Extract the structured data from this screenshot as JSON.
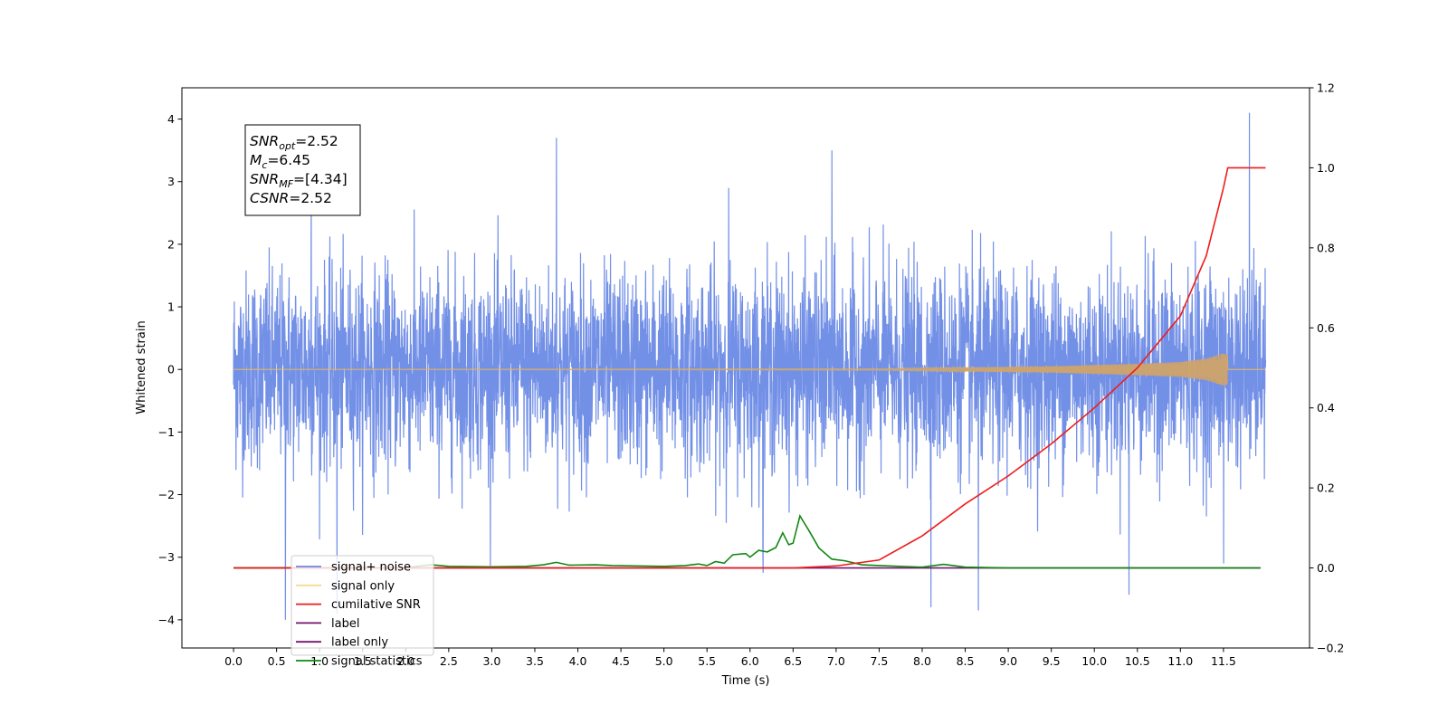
{
  "chart_data": {
    "type": "line",
    "title": "",
    "xlabel": "Time (s)",
    "ylabel": "Whitened strain",
    "y2label": "",
    "xlim": [
      -0.6,
      12.5
    ],
    "ylim": [
      -4.45,
      4.5
    ],
    "y2lim": [
      -0.2,
      1.2
    ],
    "x_ticks": [
      "0.0",
      "0.5",
      "1.0",
      "1.5",
      "2.0",
      "2.5",
      "3.0",
      "3.5",
      "4.0",
      "4.5",
      "5.0",
      "5.5",
      "6.0",
      "6.5",
      "7.0",
      "7.5",
      "8.0",
      "8.5",
      "9.0",
      "9.5",
      "10.0",
      "10.5",
      "11.0",
      "11.5"
    ],
    "y_ticks": [
      "-4",
      "-3",
      "-2",
      "-1",
      "0",
      "1",
      "2",
      "3",
      "4"
    ],
    "y2_ticks": [
      "-0.2",
      "0.0",
      "0.2",
      "0.4",
      "0.6",
      "0.8",
      "1.0",
      "1.2"
    ],
    "grid": false,
    "legend_position": "bottom-left",
    "annotation": {
      "lines": [
        {
          "base": "SNR",
          "sub": "opt",
          "rest": "=2.52"
        },
        {
          "base": "M",
          "sub": "c",
          "rest": "=6.45"
        },
        {
          "base": "SNR",
          "sub": "MF",
          "rest": "=[4.34]"
        },
        {
          "base": "CSNR",
          "sub": "",
          "rest": "=2.52"
        }
      ]
    },
    "series": [
      {
        "name": "signal+ noise",
        "color": "#6b8ae6",
        "axis": "left",
        "kind": "noise",
        "x_range": [
          0.0,
          11.99
        ],
        "envelope": [
          [
            0.0,
            2.2
          ],
          [
            3.7,
            3.7
          ],
          [
            6.9,
            3.5
          ],
          [
            9.0,
            3.0
          ],
          [
            11.8,
            4.1
          ],
          [
            11.99,
            2.6
          ]
        ],
        "spikes": [
          [
            0.6,
            -4.0
          ],
          [
            0.9,
            3.2
          ],
          [
            1.2,
            -3.9
          ],
          [
            3.75,
            3.7
          ],
          [
            5.75,
            2.9
          ],
          [
            6.15,
            -3.25
          ],
          [
            6.95,
            3.5
          ],
          [
            8.1,
            -3.8
          ],
          [
            8.65,
            -3.85
          ],
          [
            10.4,
            -3.6
          ],
          [
            11.5,
            -3.1
          ],
          [
            11.8,
            4.1
          ]
        ]
      },
      {
        "name": "signal only",
        "color": "#f5c04a",
        "axis": "left",
        "kind": "chirp",
        "x": [
          0.0,
          7.5,
          8.5,
          9.5,
          10.0,
          10.5,
          11.0,
          11.3,
          11.5,
          11.99
        ],
        "amplitude": [
          0.0,
          0.01,
          0.03,
          0.05,
          0.07,
          0.09,
          0.12,
          0.17,
          0.26,
          0.0
        ]
      },
      {
        "name": "cumilative SNR",
        "color": "#ee1c1c",
        "axis": "right",
        "x": [
          0.0,
          6.5,
          7.0,
          7.5,
          8.0,
          8.5,
          9.0,
          9.5,
          10.0,
          10.5,
          11.0,
          11.3,
          11.5,
          11.55,
          11.99
        ],
        "y": [
          0.0,
          0.0,
          0.005,
          0.02,
          0.08,
          0.16,
          0.23,
          0.31,
          0.4,
          0.5,
          0.63,
          0.78,
          0.95,
          1.0,
          1.0
        ]
      },
      {
        "name": "label",
        "color": "#74146e",
        "axis": "right",
        "x": [
          0.0,
          11.93
        ],
        "y": [
          0.0,
          0.0
        ]
      },
      {
        "name": "label only",
        "color": "#74146e",
        "axis": "right",
        "x": [],
        "y": []
      },
      {
        "name": "signal statistics",
        "color": "#118811",
        "axis": "right",
        "x": [
          0.0,
          2.0,
          2.3,
          2.5,
          3.0,
          3.4,
          3.6,
          3.75,
          3.9,
          4.2,
          4.4,
          5.0,
          5.25,
          5.4,
          5.5,
          5.6,
          5.7,
          5.8,
          5.95,
          6.0,
          6.1,
          6.2,
          6.3,
          6.38,
          6.45,
          6.5,
          6.58,
          6.68,
          6.8,
          6.95,
          7.1,
          7.3,
          7.5,
          8.0,
          8.25,
          8.5,
          9.0,
          11.93
        ],
        "y": [
          0.0,
          0.001,
          0.008,
          0.004,
          0.003,
          0.004,
          0.008,
          0.014,
          0.007,
          0.008,
          0.006,
          0.004,
          0.006,
          0.01,
          0.006,
          0.016,
          0.012,
          0.033,
          0.036,
          0.027,
          0.044,
          0.04,
          0.051,
          0.088,
          0.058,
          0.062,
          0.13,
          0.095,
          0.05,
          0.022,
          0.018,
          0.008,
          0.006,
          0.002,
          0.009,
          0.002,
          0.0,
          0.0
        ]
      }
    ]
  }
}
